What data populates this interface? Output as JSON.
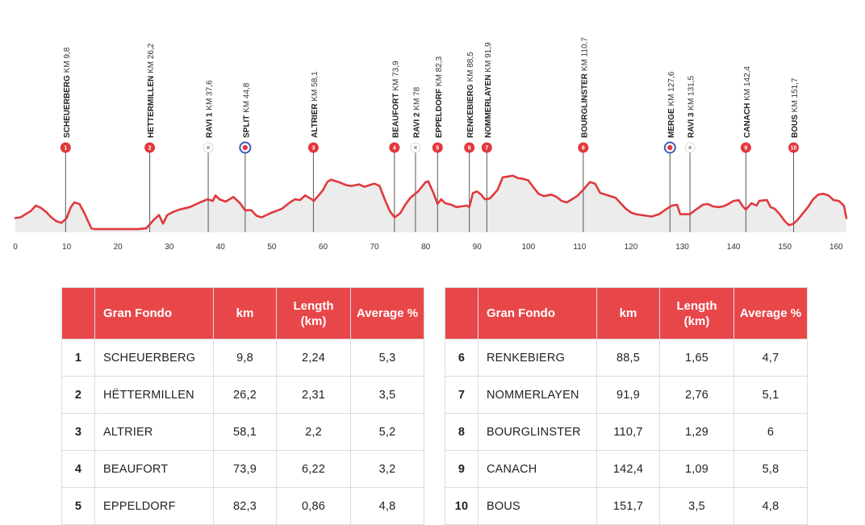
{
  "chart_data": {
    "type": "area",
    "xlim": [
      0,
      162
    ],
    "x_ticks": [
      "0",
      "10",
      "20",
      "30",
      "40",
      "50",
      "60",
      "70",
      "80",
      "90",
      "100",
      "110",
      "120",
      "130",
      "140",
      "150",
      "160"
    ],
    "x_tick_values": [
      0,
      10,
      20,
      30,
      40,
      50,
      60,
      70,
      80,
      90,
      100,
      110,
      120,
      130,
      140,
      150,
      160
    ],
    "profile": [
      [
        0,
        16
      ],
      [
        1,
        17
      ],
      [
        3,
        25
      ],
      [
        4,
        32
      ],
      [
        5,
        29
      ],
      [
        6,
        24
      ],
      [
        7,
        17
      ],
      [
        8,
        12
      ],
      [
        9,
        10
      ],
      [
        10,
        16
      ],
      [
        10.8,
        30
      ],
      [
        11.5,
        36
      ],
      [
        12.5,
        34
      ],
      [
        13.5,
        22
      ],
      [
        14.8,
        3
      ],
      [
        15.5,
        2
      ],
      [
        24,
        2
      ],
      [
        25.5,
        3
      ],
      [
        26.2,
        8
      ],
      [
        27,
        14
      ],
      [
        28,
        20
      ],
      [
        28.8,
        9
      ],
      [
        29.6,
        20
      ],
      [
        30.8,
        24
      ],
      [
        32,
        27
      ],
      [
        34,
        30
      ],
      [
        36,
        36
      ],
      [
        37.5,
        40
      ],
      [
        38.5,
        38
      ],
      [
        39,
        45
      ],
      [
        39.8,
        40
      ],
      [
        41,
        37
      ],
      [
        42.5,
        43
      ],
      [
        43.8,
        35
      ],
      [
        44.8,
        26
      ],
      [
        46,
        26
      ],
      [
        47,
        19
      ],
      [
        48,
        17
      ],
      [
        50,
        23
      ],
      [
        52,
        28
      ],
      [
        53.5,
        36
      ],
      [
        54.5,
        40
      ],
      [
        55.5,
        39
      ],
      [
        56.5,
        45
      ],
      [
        57.5,
        41
      ],
      [
        58.2,
        38
      ],
      [
        59,
        44
      ],
      [
        60,
        52
      ],
      [
        60.8,
        62
      ],
      [
        61.5,
        65
      ],
      [
        63,
        62
      ],
      [
        64.5,
        58
      ],
      [
        65.5,
        57
      ],
      [
        67,
        59
      ],
      [
        68,
        56
      ],
      [
        69,
        58
      ],
      [
        70,
        60
      ],
      [
        71,
        57
      ],
      [
        72,
        40
      ],
      [
        73,
        25
      ],
      [
        73.9,
        17
      ],
      [
        75,
        22
      ],
      [
        76,
        33
      ],
      [
        77,
        42
      ],
      [
        78.5,
        50
      ],
      [
        80,
        62
      ],
      [
        80.5,
        63
      ],
      [
        81.5,
        48
      ],
      [
        82.3,
        34
      ],
      [
        83,
        40
      ],
      [
        83.8,
        35
      ],
      [
        85,
        33
      ],
      [
        86,
        30
      ],
      [
        87,
        31
      ],
      [
        88,
        32
      ],
      [
        88.5,
        30
      ],
      [
        89.2,
        48
      ],
      [
        90,
        50
      ],
      [
        90.8,
        46
      ],
      [
        91.5,
        40
      ],
      [
        92.5,
        41
      ],
      [
        94,
        52
      ],
      [
        95,
        68
      ],
      [
        97,
        70
      ],
      [
        98,
        67
      ],
      [
        99,
        66
      ],
      [
        100,
        64
      ],
      [
        101,
        55
      ],
      [
        102,
        47
      ],
      [
        103,
        44
      ],
      [
        104.5,
        46
      ],
      [
        105.5,
        43
      ],
      [
        106.5,
        38
      ],
      [
        107.5,
        36
      ],
      [
        108.5,
        40
      ],
      [
        109.5,
        44
      ],
      [
        110.7,
        52
      ],
      [
        112,
        62
      ],
      [
        113,
        60
      ],
      [
        114,
        48
      ],
      [
        115,
        46
      ],
      [
        116,
        44
      ],
      [
        117,
        42
      ],
      [
        118,
        35
      ],
      [
        119,
        28
      ],
      [
        120,
        23
      ],
      [
        121,
        21
      ],
      [
        122,
        20
      ],
      [
        123,
        19
      ],
      [
        124,
        18
      ],
      [
        125.5,
        21
      ],
      [
        127,
        28
      ],
      [
        128,
        32
      ],
      [
        129,
        33
      ],
      [
        129.6,
        21
      ],
      [
        130.5,
        21
      ],
      [
        131.5,
        21
      ],
      [
        132.5,
        26
      ],
      [
        134,
        33
      ],
      [
        135,
        34
      ],
      [
        136,
        31
      ],
      [
        137,
        30
      ],
      [
        138,
        31
      ],
      [
        139,
        34
      ],
      [
        140,
        38
      ],
      [
        141,
        39
      ],
      [
        141.8,
        31
      ],
      [
        142.4,
        27
      ],
      [
        143.5,
        35
      ],
      [
        144.5,
        32
      ],
      [
        145,
        38
      ],
      [
        146.5,
        39
      ],
      [
        147.2,
        30
      ],
      [
        148,
        28
      ],
      [
        149,
        21
      ],
      [
        150,
        12
      ],
      [
        150.8,
        7
      ],
      [
        151.7,
        9
      ],
      [
        152.5,
        14
      ],
      [
        153.5,
        22
      ],
      [
        154.5,
        30
      ],
      [
        155.5,
        40
      ],
      [
        156.5,
        46
      ],
      [
        157.5,
        47
      ],
      [
        158.5,
        45
      ],
      [
        159.5,
        39
      ],
      [
        160.5,
        38
      ],
      [
        161.5,
        32
      ],
      [
        162,
        16
      ]
    ],
    "climbs": [
      {
        "badge": "1",
        "name": "SCHEUERBERG",
        "km_label": "KM 9,8",
        "km": 9.8,
        "type": "climb"
      },
      {
        "badge": "2",
        "name": "HETTERMILLEN",
        "km_label": "KM 26,2",
        "km": 26.2,
        "type": "climb"
      },
      {
        "badge": "×",
        "name": "RAVI 1",
        "km_label": "KM 37,6",
        "km": 37.6,
        "type": "feed"
      },
      {
        "badge": "",
        "name": "SPLIT",
        "km_label": "KM 44,8",
        "km": 44.8,
        "type": "split"
      },
      {
        "badge": "3",
        "name": "ALTRIER",
        "km_label": "KM 58,1",
        "km": 58.1,
        "type": "climb"
      },
      {
        "badge": "4",
        "name": "BEAUFORT",
        "km_label": "KM 73,9",
        "km": 73.9,
        "type": "climb"
      },
      {
        "badge": "×",
        "name": "RAVI 2",
        "km_label": "KM 78",
        "km": 78,
        "type": "feed"
      },
      {
        "badge": "5",
        "name": "EPPELDORF",
        "km_label": "KM 82,3",
        "km": 82.3,
        "type": "climb"
      },
      {
        "badge": "6",
        "name": "RENKEBIERG",
        "km_label": "KM 88,5",
        "km": 88.5,
        "type": "climb"
      },
      {
        "badge": "7",
        "name": "NOMMERLAYEN",
        "km_label": "KM 91,9",
        "km": 91.9,
        "type": "climb"
      },
      {
        "badge": "8",
        "name": "BOURGLINSTER",
        "km_label": "KM 110,7",
        "km": 110.7,
        "type": "climb"
      },
      {
        "badge": "",
        "name": "MERGE",
        "km_label": "KM 127,6",
        "km": 127.6,
        "type": "split"
      },
      {
        "badge": "×",
        "name": "RAVI 3",
        "km_label": "KM 131,5",
        "km": 131.5,
        "type": "feed"
      },
      {
        "badge": "9",
        "name": "CANACH",
        "km_label": "KM 142,4",
        "km": 142.4,
        "type": "climb"
      },
      {
        "badge": "10",
        "name": "BOUS",
        "km_label": "KM 151,7",
        "km": 151.7,
        "type": "climb"
      }
    ],
    "colors": {
      "line": "#e0393e",
      "fill": "#ececec",
      "badge": "#e0393e",
      "pole": "#555555",
      "split_ring": "#3c5bb5"
    }
  },
  "tables": [
    {
      "headers": {
        "blank": "",
        "name": "Gran Fondo",
        "km": "km",
        "length": "Length (km)",
        "average": "Average %"
      },
      "rows": [
        {
          "num": "1",
          "name": "SCHEUERBERG",
          "km": "9,8",
          "length": "2,24",
          "average": "5,3"
        },
        {
          "num": "2",
          "name": "HËTTERMILLEN",
          "km": "26,2",
          "length": "2,31",
          "average": "3,5"
        },
        {
          "num": "3",
          "name": "ALTRIER",
          "km": "58,1",
          "length": "2,2",
          "average": "5,2"
        },
        {
          "num": "4",
          "name": "BEAUFORT",
          "km": "73,9",
          "length": "6,22",
          "average": "3,2"
        },
        {
          "num": "5",
          "name": "EPPELDORF",
          "km": "82,3",
          "length": "0,86",
          "average": "4,8"
        }
      ]
    },
    {
      "headers": {
        "blank": "",
        "name": "Gran Fondo",
        "km": "km",
        "length": "Length (km)",
        "average": "Average %"
      },
      "rows": [
        {
          "num": "6",
          "name": "RENKEBIERG",
          "km": "88,5",
          "length": "1,65",
          "average": "4,7"
        },
        {
          "num": "7",
          "name": "NOMMERLAYEN",
          "km": "91,9",
          "length": "2,76",
          "average": "5,1"
        },
        {
          "num": "8",
          "name": "BOURGLINSTER",
          "km": "110,7",
          "length": "1,29",
          "average": "6"
        },
        {
          "num": "9",
          "name": "CANACH",
          "km": "142,4",
          "length": "1,09",
          "average": "5,8"
        },
        {
          "num": "10",
          "name": "BOUS",
          "km": "151,7",
          "length": "3,5",
          "average": "4,8"
        }
      ]
    }
  ]
}
